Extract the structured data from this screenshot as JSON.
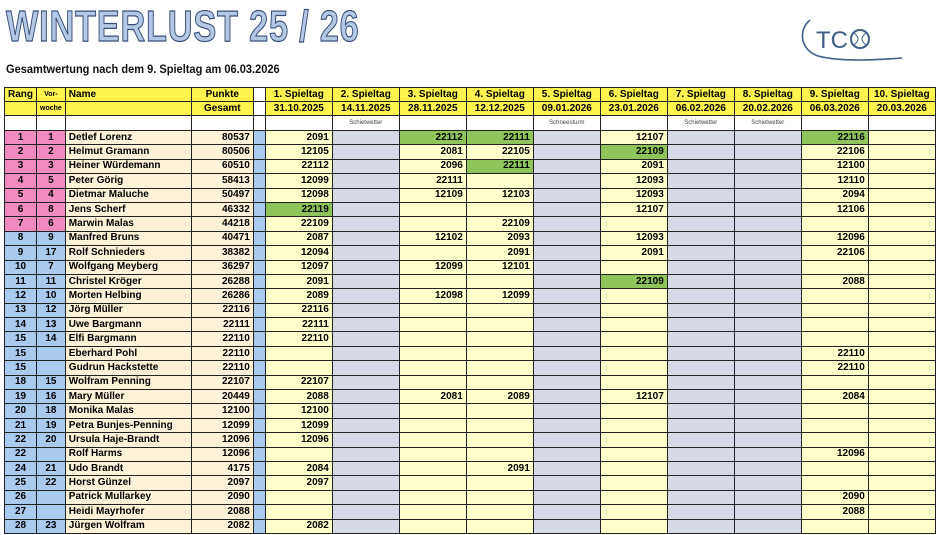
{
  "title": "WINTERLUST 25 / 26",
  "subtitle": "Gesamtwertung nach dem 9. Spieltag am 06.03.2026",
  "logo_text": "TCO",
  "colors": {
    "top_rank": "#f08cc0",
    "rank": "#a9c9ef",
    "header": "#fff44f",
    "cancelled": "#d6dae6",
    "played": "#ffffcc",
    "best": "#8fc45a"
  },
  "header": {
    "rang": "Rang",
    "vorwoche_1": "Vor-",
    "vorwoche_2": "woche",
    "name": "Name",
    "punkte_1": "Punkte",
    "punkte_2": "Gesamt"
  },
  "spieltage": [
    {
      "label": "1. Spieltag",
      "date": "31.10.2025",
      "note": "",
      "cancelled": false
    },
    {
      "label": "2. Spieltag",
      "date": "14.11.2025",
      "note": "Schietwetter",
      "cancelled": true
    },
    {
      "label": "3. Spieltag",
      "date": "28.11.2025",
      "note": "",
      "cancelled": false
    },
    {
      "label": "4. Spieltag",
      "date": "12.12.2025",
      "note": "",
      "cancelled": false
    },
    {
      "label": "5. Spieltag",
      "date": "09.01.2026",
      "note": "Schneesturm",
      "cancelled": true
    },
    {
      "label": "6. Spieltag",
      "date": "23.01.2026",
      "note": "",
      "cancelled": false
    },
    {
      "label": "7. Spieltag",
      "date": "06.02.2026",
      "note": "Schietwetter",
      "cancelled": true
    },
    {
      "label": "8. Spieltag",
      "date": "20.02.2026",
      "note": "Schietwetter",
      "cancelled": true
    },
    {
      "label": "9. Spieltag",
      "date": "06.03.2026",
      "note": "",
      "cancelled": false
    },
    {
      "label": "10. Spieltag",
      "date": "20.03.2026",
      "note": "",
      "cancelled": false
    }
  ],
  "rows": [
    {
      "rang": "1",
      "vw": "1",
      "name": "Detlef Lorenz",
      "punkte": "80537",
      "scores": [
        "2091",
        "",
        "22112",
        "22111",
        "",
        "12107",
        "",
        "",
        "22116",
        ""
      ],
      "best": [
        2,
        3,
        8
      ]
    },
    {
      "rang": "2",
      "vw": "2",
      "name": "Helmut Gramann",
      "punkte": "80506",
      "scores": [
        "12105",
        "",
        "2081",
        "22105",
        "",
        "22109",
        "",
        "",
        "22106",
        ""
      ],
      "best": [
        5
      ]
    },
    {
      "rang": "3",
      "vw": "3",
      "name": "Heiner Würdemann",
      "punkte": "60510",
      "scores": [
        "22112",
        "",
        "2096",
        "22111",
        "",
        "2091",
        "",
        "",
        "12100",
        ""
      ],
      "best": [
        3
      ]
    },
    {
      "rang": "4",
      "vw": "5",
      "name": "Peter Görig",
      "punkte": "58413",
      "scores": [
        "12099",
        "",
        "22111",
        "",
        "",
        "12093",
        "",
        "",
        "12110",
        ""
      ],
      "best": []
    },
    {
      "rang": "5",
      "vw": "4",
      "name": "Dietmar Maluche",
      "punkte": "50497",
      "scores": [
        "12098",
        "",
        "12109",
        "12103",
        "",
        "12093",
        "",
        "",
        "2094",
        ""
      ],
      "best": []
    },
    {
      "rang": "6",
      "vw": "8",
      "name": "Jens Scherf",
      "punkte": "46332",
      "scores": [
        "22119",
        "",
        "",
        "",
        "",
        "12107",
        "",
        "",
        "12106",
        ""
      ],
      "best": [
        0
      ]
    },
    {
      "rang": "7",
      "vw": "6",
      "name": "Marwin Malas",
      "punkte": "44218",
      "scores": [
        "22109",
        "",
        "",
        "22109",
        "",
        "",
        "",
        "",
        "",
        ""
      ],
      "best": []
    },
    {
      "rang": "8",
      "vw": "9",
      "name": "Manfred Bruns",
      "punkte": "40471",
      "scores": [
        "2087",
        "",
        "12102",
        "2093",
        "",
        "12093",
        "",
        "",
        "12096",
        ""
      ],
      "best": []
    },
    {
      "rang": "9",
      "vw": "17",
      "name": "Rolf Schnieders",
      "punkte": "38382",
      "scores": [
        "12094",
        "",
        "",
        "2091",
        "",
        "2091",
        "",
        "",
        "22106",
        ""
      ],
      "best": []
    },
    {
      "rang": "10",
      "vw": "7",
      "name": "Wolfgang Meyberg",
      "punkte": "36297",
      "scores": [
        "12097",
        "",
        "12099",
        "12101",
        "",
        "",
        "",
        "",
        "",
        ""
      ],
      "best": []
    },
    {
      "rang": "11",
      "vw": "11",
      "name": "Christel Kröger",
      "punkte": "26288",
      "scores": [
        "2091",
        "",
        "",
        "",
        "",
        "22109",
        "",
        "",
        "2088",
        ""
      ],
      "best": [
        5
      ]
    },
    {
      "rang": "12",
      "vw": "10",
      "name": "Morten Helbing",
      "punkte": "26286",
      "scores": [
        "2089",
        "",
        "12098",
        "12099",
        "",
        "",
        "",
        "",
        "",
        ""
      ],
      "best": []
    },
    {
      "rang": "13",
      "vw": "12",
      "name": "Jörg Müller",
      "punkte": "22116",
      "scores": [
        "22116",
        "",
        "",
        "",
        "",
        "",
        "",
        "",
        "",
        ""
      ],
      "best": []
    },
    {
      "rang": "14",
      "vw": "13",
      "name": "Uwe Bargmann",
      "punkte": "22111",
      "scores": [
        "22111",
        "",
        "",
        "",
        "",
        "",
        "",
        "",
        "",
        ""
      ],
      "best": []
    },
    {
      "rang": "15",
      "vw": "14",
      "name": "Elfi Bargmann",
      "punkte": "22110",
      "scores": [
        "22110",
        "",
        "",
        "",
        "",
        "",
        "",
        "",
        "",
        ""
      ],
      "best": []
    },
    {
      "rang": "15",
      "vw": "",
      "name": "Eberhard Pohl",
      "punkte": "22110",
      "scores": [
        "",
        "",
        "",
        "",
        "",
        "",
        "",
        "",
        "22110",
        ""
      ],
      "best": []
    },
    {
      "rang": "15",
      "vw": "",
      "name": "Gudrun Hackstette",
      "punkte": "22110",
      "scores": [
        "",
        "",
        "",
        "",
        "",
        "",
        "",
        "",
        "22110",
        ""
      ],
      "best": []
    },
    {
      "rang": "18",
      "vw": "15",
      "name": "Wolfram Penning",
      "punkte": "22107",
      "scores": [
        "22107",
        "",
        "",
        "",
        "",
        "",
        "",
        "",
        "",
        ""
      ],
      "best": []
    },
    {
      "rang": "19",
      "vw": "16",
      "name": "Mary Müller",
      "punkte": "20449",
      "scores": [
        "2088",
        "",
        "2081",
        "2089",
        "",
        "12107",
        "",
        "",
        "2084",
        ""
      ],
      "best": []
    },
    {
      "rang": "20",
      "vw": "18",
      "name": "Monika Malas",
      "punkte": "12100",
      "scores": [
        "12100",
        "",
        "",
        "",
        "",
        "",
        "",
        "",
        "",
        ""
      ],
      "best": []
    },
    {
      "rang": "21",
      "vw": "19",
      "name": "Petra Bunjes-Penning",
      "punkte": "12099",
      "scores": [
        "12099",
        "",
        "",
        "",
        "",
        "",
        "",
        "",
        "",
        ""
      ],
      "best": []
    },
    {
      "rang": "22",
      "vw": "20",
      "name": "Ursula Haje-Brandt",
      "punkte": "12096",
      "scores": [
        "12096",
        "",
        "",
        "",
        "",
        "",
        "",
        "",
        "",
        ""
      ],
      "best": []
    },
    {
      "rang": "22",
      "vw": "",
      "name": "Rolf Harms",
      "punkte": "12096",
      "scores": [
        "",
        "",
        "",
        "",
        "",
        "",
        "",
        "",
        "12096",
        ""
      ],
      "best": []
    },
    {
      "rang": "24",
      "vw": "21",
      "name": "Udo Brandt",
      "punkte": "4175",
      "scores": [
        "2084",
        "",
        "",
        "2091",
        "",
        "",
        "",
        "",
        "",
        ""
      ],
      "best": []
    },
    {
      "rang": "25",
      "vw": "22",
      "name": "Horst Günzel",
      "punkte": "2097",
      "scores": [
        "2097",
        "",
        "",
        "",
        "",
        "",
        "",
        "",
        "",
        ""
      ],
      "best": []
    },
    {
      "rang": "26",
      "vw": "",
      "name": "Patrick Mullarkey",
      "punkte": "2090",
      "scores": [
        "",
        "",
        "",
        "",
        "",
        "",
        "",
        "",
        "2090",
        ""
      ],
      "best": []
    },
    {
      "rang": "27",
      "vw": "",
      "name": "Heidi Mayrhofer",
      "punkte": "2088",
      "scores": [
        "",
        "",
        "",
        "",
        "",
        "",
        "",
        "",
        "2088",
        ""
      ],
      "best": []
    },
    {
      "rang": "28",
      "vw": "23",
      "name": "Jürgen Wolfram",
      "punkte": "2082",
      "scores": [
        "2082",
        "",
        "",
        "",
        "",
        "",
        "",
        "",
        "",
        ""
      ],
      "best": []
    }
  ]
}
